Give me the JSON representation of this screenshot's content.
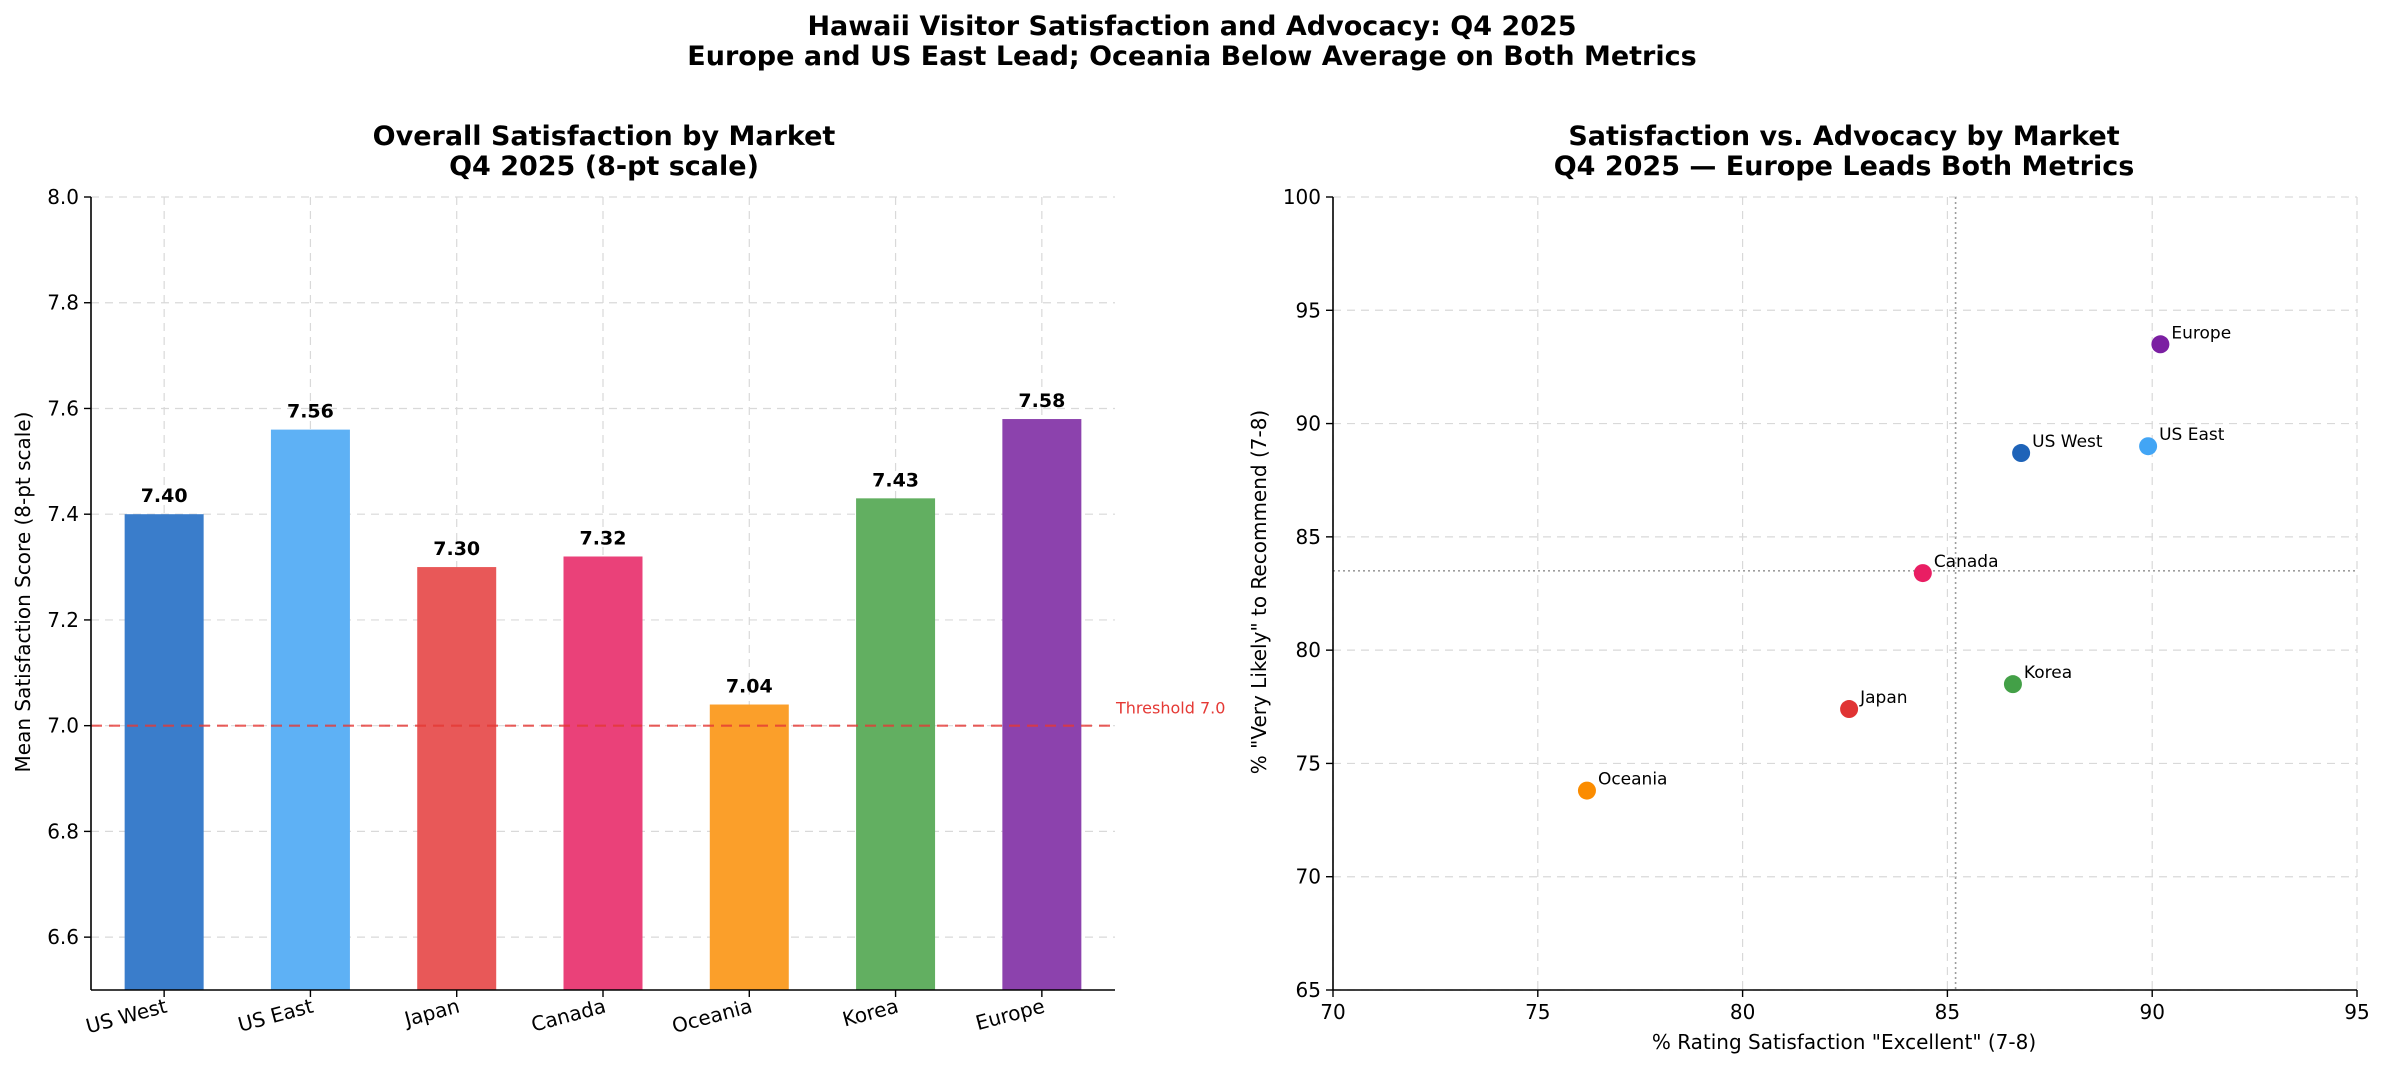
{
  "figure": {
    "title_line1": "Hawaii Visitor Satisfaction and Advocacy: Q4 2025",
    "title_line2": "Europe and US East Lead; Oceania Below Average on Both Metrics"
  },
  "chart_data": [
    {
      "type": "bar",
      "title_line1": "Overall Satisfaction by Market",
      "title_line2": "Q4 2025 (8-pt scale)",
      "xlabel": "",
      "ylabel": "Mean Satisfaction Score (8-pt scale)",
      "ylim": [
        6.5,
        8.0
      ],
      "yticks": [
        6.6,
        6.8,
        7.0,
        7.2,
        7.4,
        7.6,
        7.8,
        8.0
      ],
      "grid": true,
      "categories": [
        "US West",
        "US East",
        "Japan",
        "Canada",
        "Oceania",
        "Korea",
        "Europe"
      ],
      "values": [
        7.4,
        7.56,
        7.3,
        7.32,
        7.04,
        7.43,
        7.58
      ],
      "value_labels": [
        "7.40",
        "7.56",
        "7.30",
        "7.32",
        "7.04",
        "7.43",
        "7.58"
      ],
      "colors": [
        "#3a7dcb",
        "#5eb1f5",
        "#e85858",
        "#ea4179",
        "#fb9f2a",
        "#62af61",
        "#8c42ad"
      ],
      "threshold": {
        "value": 7.0,
        "label": "Threshold 7.0",
        "color": "#e53935"
      }
    },
    {
      "type": "scatter",
      "title_line1": "Satisfaction vs. Advocacy by Market",
      "title_line2": "Q4 2025 — Europe Leads Both Metrics",
      "xlabel": "% Rating Satisfaction \"Excellent\" (7-8)",
      "ylabel": "% \"Very Likely\" to Recommend (7-8)",
      "xlim": [
        70,
        95
      ],
      "ylim": [
        65,
        100
      ],
      "xticks": [
        70,
        75,
        80,
        85,
        90,
        95
      ],
      "yticks": [
        65,
        70,
        75,
        80,
        85,
        90,
        95,
        100
      ],
      "grid": true,
      "reference_lines": {
        "x": 85.2,
        "y": 83.5
      },
      "points": [
        {
          "name": "US West",
          "x": 86.8,
          "y": 88.7,
          "color": "#1e63b8"
        },
        {
          "name": "US East",
          "x": 89.9,
          "y": 89.0,
          "color": "#42a5f5"
        },
        {
          "name": "Japan",
          "x": 82.6,
          "y": 77.4,
          "color": "#e03333"
        },
        {
          "name": "Canada",
          "x": 84.4,
          "y": 83.4,
          "color": "#e91e63"
        },
        {
          "name": "Oceania",
          "x": 76.2,
          "y": 73.8,
          "color": "#fb8c00"
        },
        {
          "name": "Korea",
          "x": 86.6,
          "y": 78.5,
          "color": "#43a047"
        },
        {
          "name": "Europe",
          "x": 90.2,
          "y": 93.5,
          "color": "#7b1fa2"
        }
      ]
    }
  ]
}
